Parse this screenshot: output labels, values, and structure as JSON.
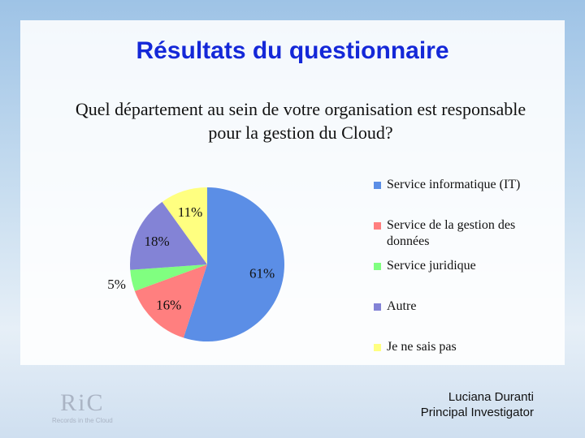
{
  "chart_data": {
    "type": "pie",
    "title": "Résultats du questionnaire",
    "subtitle": "Quel département au sein de votre organisation est responsable pour la gestion du Cloud?",
    "categories": [
      "Service informatique (IT)",
      "Service de la gestion des données",
      "Service juridique",
      "Autre",
      "Je ne sais pas"
    ],
    "values": [
      61,
      16,
      5,
      18,
      11
    ],
    "value_labels": [
      "61%",
      "16%",
      "5%",
      "18%",
      "11%"
    ],
    "colors": [
      "#5b8ee6",
      "#ff7f7f",
      "#80ff80",
      "#8383d6",
      "#ffff80"
    ]
  },
  "footer": {
    "name": "Luciana Duranti",
    "role": "Principal Investigator"
  },
  "logo": {
    "text": "RiC",
    "subtitle": "Records in the Cloud"
  }
}
